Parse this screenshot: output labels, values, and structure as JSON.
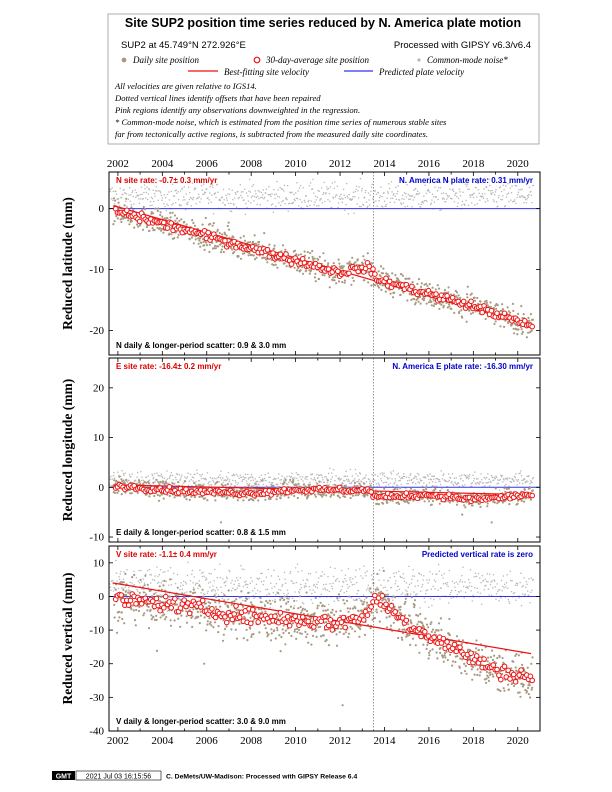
{
  "header": {
    "title": "Site SUP2 position time series reduced by N. America plate motion",
    "site_line": "SUP2 at 45.749°N 272.926°E",
    "processed_line": "Processed with GIPSY v6.3/v6.4",
    "legend": {
      "daily": "Daily site position",
      "avg30": "30-day-average site position",
      "cmn": "Common-mode noise*",
      "best_fit": "Best-fitting site velocity",
      "predicted": "Predicted plate velocity"
    },
    "notes": [
      "All velocities are given relative to IGS14.",
      "Dotted vertical lines identify offsets that have been repaired",
      "Pink regions identify any observations downweighted in the regression.",
      "* Common-mode noise, which is estimated from the position time series of numerous stable sites",
      "far from tectonically active regions, is subtracted from the measured daily site coordinates."
    ]
  },
  "footer": {
    "logo": "GMT",
    "timestamp": "2021 Jul 03 16:15:56",
    "credit": "C. DeMets/UW-Madison: Processed with GIPSY Release 6.4"
  },
  "colors": {
    "daily": "#a89a80",
    "cmn": "#b8b8b8",
    "avg30_stroke": "#ee1111",
    "best_fit": "#ee1111",
    "predicted": "#3333ee",
    "rate_red": "#dd0000",
    "rate_blue": "#0000cc"
  },
  "offset_year": 2013.5,
  "chart_data": [
    {
      "type": "scatter",
      "component": "N",
      "ylabel": "Reduced latitude (mm)",
      "xlim": [
        2001.6,
        2021.0
      ],
      "ylim": [
        -24,
        6
      ],
      "yticks": [
        0,
        -10,
        -20
      ],
      "xticks": [
        2002,
        2004,
        2006,
        2008,
        2010,
        2012,
        2014,
        2016,
        2018,
        2020
      ],
      "site_rate": "N site rate:  -0.7± 0.3 mm/yr",
      "plate_rate": "N. America N plate rate: 0.31 mm/yr",
      "scatter_text": "N daily & longer-period scatter:   0.9 &   3.0 mm",
      "best_fit": {
        "x": [
          2001.8,
          2020.6
        ],
        "y": [
          0.5,
          -19.2
        ]
      },
      "predicted_y": 0,
      "avg30_trend": {
        "x": [
          2002,
          2004,
          2006,
          2008,
          2010,
          2012,
          2013.3,
          2013.6,
          2016,
          2018,
          2020,
          2020.6
        ],
        "y": [
          -0.5,
          -2.5,
          -4.5,
          -6.5,
          -8.5,
          -10.5,
          -9.5,
          -11.5,
          -14.0,
          -16.0,
          -18.5,
          -19.5
        ]
      },
      "noise": 1.4,
      "cmn_y": 2.0,
      "cmn_spread": 1.6
    },
    {
      "type": "scatter",
      "component": "E",
      "ylabel": "Reduced longitude (mm)",
      "xlim": [
        2001.6,
        2021.0
      ],
      "ylim": [
        -11,
        26
      ],
      "yticks": [
        20,
        10,
        0,
        -10
      ],
      "xticks": [
        2002,
        2004,
        2006,
        2008,
        2010,
        2012,
        2014,
        2016,
        2018,
        2020
      ],
      "site_rate": "E site rate:  -16.4± 0.2 mm/yr",
      "plate_rate": "N. America E plate rate: -16.30 mm/yr",
      "scatter_text": "E daily & longer-period scatter:   0.8 &   1.5 mm",
      "best_fit": {
        "x": [
          2001.8,
          2020.6
        ],
        "y": [
          0.5,
          -1.5
        ]
      },
      "predicted_y": 0,
      "avg30_trend": {
        "x": [
          2002,
          2005,
          2008,
          2010,
          2013.3,
          2013.6,
          2016,
          2018,
          2020.6
        ],
        "y": [
          0.3,
          -0.8,
          -1.2,
          -0.5,
          -0.6,
          -2.0,
          -1.5,
          -2.5,
          -1.5
        ]
      },
      "noise": 1.1,
      "cmn_y": 1.5,
      "cmn_spread": 1.2
    },
    {
      "type": "scatter",
      "component": "V",
      "ylabel": "Reduced vertical (mm)",
      "xlim": [
        2001.6,
        2021.0
      ],
      "ylim": [
        -40,
        15
      ],
      "yticks": [
        10,
        0,
        -10,
        -20,
        -30,
        -40
      ],
      "xticks": [
        2002,
        2004,
        2006,
        2008,
        2010,
        2012,
        2014,
        2016,
        2018,
        2020
      ],
      "site_rate": "V site rate:  -1.1± 0.4 mm/yr",
      "plate_rate": "Predicted vertical rate is zero",
      "scatter_text": "V daily & longer-period scatter:   3.0 &   9.0 mm",
      "best_fit": {
        "x": [
          2001.8,
          2020.6
        ],
        "y": [
          4.0,
          -17.0
        ]
      },
      "predicted_y": 0,
      "avg30_trend": {
        "x": [
          2002,
          2004,
          2006,
          2008,
          2010,
          2012,
          2013.3,
          2013.6,
          2015,
          2017,
          2019,
          2020.6
        ],
        "y": [
          -1.0,
          -2.0,
          -4.0,
          -6.0,
          -7.0,
          -8.0,
          -5.0,
          0.0,
          -8.0,
          -15.0,
          -22.0,
          -24.0
        ]
      },
      "noise": 4.5,
      "cmn_y": 3.0,
      "cmn_spread": 4.0
    }
  ]
}
